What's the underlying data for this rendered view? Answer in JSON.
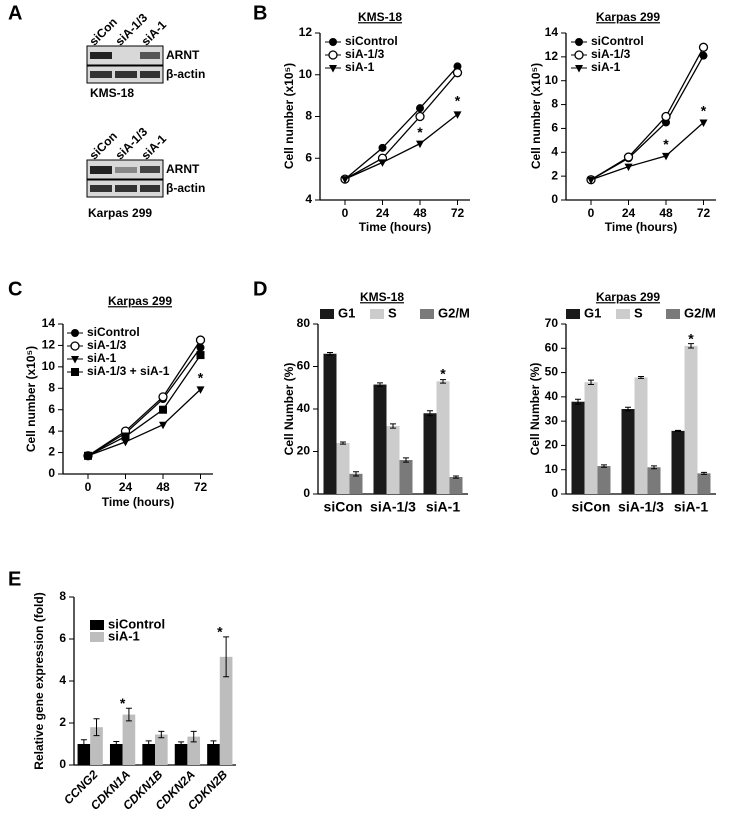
{
  "panel_labels": [
    "A",
    "B",
    "C",
    "D",
    "E"
  ],
  "blots": [
    {
      "columns": [
        "siCon",
        "siA-1/3",
        "siA-1"
      ],
      "rows": [
        "ARNT",
        "β-actin"
      ],
      "cell_line": "KMS-18"
    },
    {
      "columns": [
        "siCon",
        "siA-1/3",
        "siA-1"
      ],
      "rows": [
        "ARNT",
        "β-actin"
      ],
      "cell_line": "Karpas 299"
    }
  ],
  "chart_data": [
    {
      "type": "line",
      "title": "KMS-18",
      "xlabel": "Time (hours)",
      "ylabel": "Cell number (x10⁵)",
      "x": [
        0,
        24,
        48,
        72
      ],
      "xlim": [
        -16,
        80
      ],
      "xticks": [
        0,
        24,
        48,
        72
      ],
      "ylim": [
        4,
        12
      ],
      "yticks": [
        4,
        6,
        8,
        10,
        12
      ],
      "series": [
        {
          "name": "siControl",
          "color": "#000000",
          "marker": "circle",
          "values": [
            5.0,
            6.5,
            8.4,
            10.4
          ]
        },
        {
          "name": "siA-1/3",
          "color": "#000000",
          "marker": "open-circle",
          "values": [
            5.0,
            6.0,
            8.0,
            10.1
          ]
        },
        {
          "name": "siA-1",
          "color": "#000000",
          "marker": "triangle-down",
          "values": [
            5.0,
            5.8,
            6.7,
            8.1
          ]
        }
      ],
      "annotations": [
        {
          "text": "*",
          "x": 48,
          "y": 7.2
        },
        {
          "text": "*",
          "x": 72,
          "y": 8.7
        }
      ]
    },
    {
      "type": "line",
      "title": "Karpas 299",
      "xlabel": "Time (hours)",
      "ylabel": "Cell number (x10⁵)",
      "x": [
        0,
        24,
        48,
        72
      ],
      "xlim": [
        -16,
        80
      ],
      "xticks": [
        0,
        24,
        48,
        72
      ],
      "ylim": [
        0,
        14
      ],
      "yticks": [
        0,
        2,
        4,
        6,
        8,
        10,
        12,
        14
      ],
      "series": [
        {
          "name": "siControl",
          "color": "#000000",
          "marker": "circle",
          "values": [
            1.7,
            3.5,
            6.5,
            12.1
          ]
        },
        {
          "name": "siA-1/3",
          "color": "#000000",
          "marker": "open-circle",
          "values": [
            1.7,
            3.6,
            7.0,
            12.8
          ]
        },
        {
          "name": "siA-1",
          "color": "#000000",
          "marker": "triangle-down",
          "values": [
            1.7,
            2.8,
            3.7,
            6.5
          ]
        }
      ],
      "annotations": [
        {
          "text": "*",
          "x": 48,
          "y": 4.6
        },
        {
          "text": "*",
          "x": 72,
          "y": 7.4
        }
      ]
    },
    {
      "type": "line",
      "title": "Karpas 299",
      "xlabel": "Time (hours)",
      "ylabel": "Cell number (x10⁵)",
      "x": [
        0,
        24,
        48,
        72
      ],
      "xlim": [
        -16,
        80
      ],
      "xticks": [
        0,
        24,
        48,
        72
      ],
      "ylim": [
        0,
        14
      ],
      "yticks": [
        0,
        2,
        4,
        6,
        8,
        10,
        12,
        14
      ],
      "series": [
        {
          "name": "siControl",
          "color": "#000000",
          "marker": "circle",
          "values": [
            1.7,
            3.8,
            7.0,
            11.8
          ]
        },
        {
          "name": "siA-1/3",
          "color": "#000000",
          "marker": "open-circle",
          "values": [
            1.7,
            4.0,
            7.2,
            12.5
          ]
        },
        {
          "name": "siA-1",
          "color": "#000000",
          "marker": "triangle-down",
          "values": [
            1.7,
            3.0,
            4.6,
            7.9
          ]
        },
        {
          "name": "siA-1/3 + siA-1",
          "color": "#000000",
          "marker": "square",
          "values": [
            1.7,
            3.5,
            6.0,
            11.1
          ]
        }
      ],
      "annotations": [
        {
          "text": "*",
          "x": 48,
          "y": 5.6
        },
        {
          "text": "*",
          "x": 72,
          "y": 8.9
        }
      ]
    },
    {
      "type": "bar",
      "title": "KMS-18",
      "ylabel": "Cell Number (%)",
      "categories": [
        "siCon",
        "siA-1/3",
        "siA-1"
      ],
      "ylim": [
        0,
        80
      ],
      "yticks": [
        0,
        20,
        40,
        60,
        80
      ],
      "series": [
        {
          "name": "G1",
          "color": "#1a1a1a",
          "values": [
            66,
            51.5,
            38
          ],
          "errors": [
            0.6,
            0.8,
            1.2
          ]
        },
        {
          "name": "S",
          "color": "#cccccc",
          "values": [
            24,
            32,
            53
          ],
          "errors": [
            0.5,
            1.0,
            0.8
          ]
        },
        {
          "name": "G2/M",
          "color": "#7a7a7a",
          "values": [
            9.5,
            16,
            8
          ],
          "errors": [
            1.0,
            1.0,
            0.5
          ]
        }
      ],
      "annotations": [
        {
          "text": "*",
          "x": "siA-1",
          "y": 56
        }
      ]
    },
    {
      "type": "bar",
      "title": "Karpas 299",
      "ylabel": "Cell Number (%)",
      "categories": [
        "siCon",
        "siA-1/3",
        "siA-1"
      ],
      "ylim": [
        0,
        70
      ],
      "yticks": [
        0,
        10,
        20,
        30,
        40,
        50,
        60,
        70
      ],
      "series": [
        {
          "name": "G1",
          "color": "#1a1a1a",
          "values": [
            38,
            35,
            26
          ],
          "errors": [
            1.0,
            0.7,
            0.2
          ]
        },
        {
          "name": "S",
          "color": "#cccccc",
          "values": [
            46,
            48,
            61
          ],
          "errors": [
            0.9,
            0.4,
            0.9
          ]
        },
        {
          "name": "G2/M",
          "color": "#7a7a7a",
          "values": [
            11.5,
            11,
            8.5
          ],
          "errors": [
            0.5,
            0.6,
            0.4
          ]
        }
      ],
      "annotations": [
        {
          "text": "*",
          "x": "siA-1",
          "y": 63.5
        }
      ]
    },
    {
      "type": "bar",
      "ylabel": "Relative gene expression (fold)",
      "categories": [
        "CCNG2",
        "CDKN1A",
        "CDKN1B",
        "CDKN2A",
        "CDKN2B"
      ],
      "ylim": [
        0,
        8
      ],
      "yticks": [
        0,
        2,
        4,
        6,
        8
      ],
      "series": [
        {
          "name": "siControl",
          "color": "#000000",
          "values": [
            1,
            1,
            1,
            1,
            1
          ],
          "errors": [
            0.2,
            0.12,
            0.15,
            0.1,
            0.15
          ]
        },
        {
          "name": "siA-1",
          "color": "#bdbdbd",
          "values": [
            1.8,
            2.4,
            1.45,
            1.35,
            5.15
          ],
          "errors": [
            0.4,
            0.3,
            0.15,
            0.25,
            0.95
          ]
        }
      ],
      "annotations": [
        {
          "text": "*",
          "x": "CDKN1A",
          "y": 2.9
        },
        {
          "text": "*",
          "x": "CDKN2B",
          "y": 6.3
        }
      ]
    }
  ]
}
